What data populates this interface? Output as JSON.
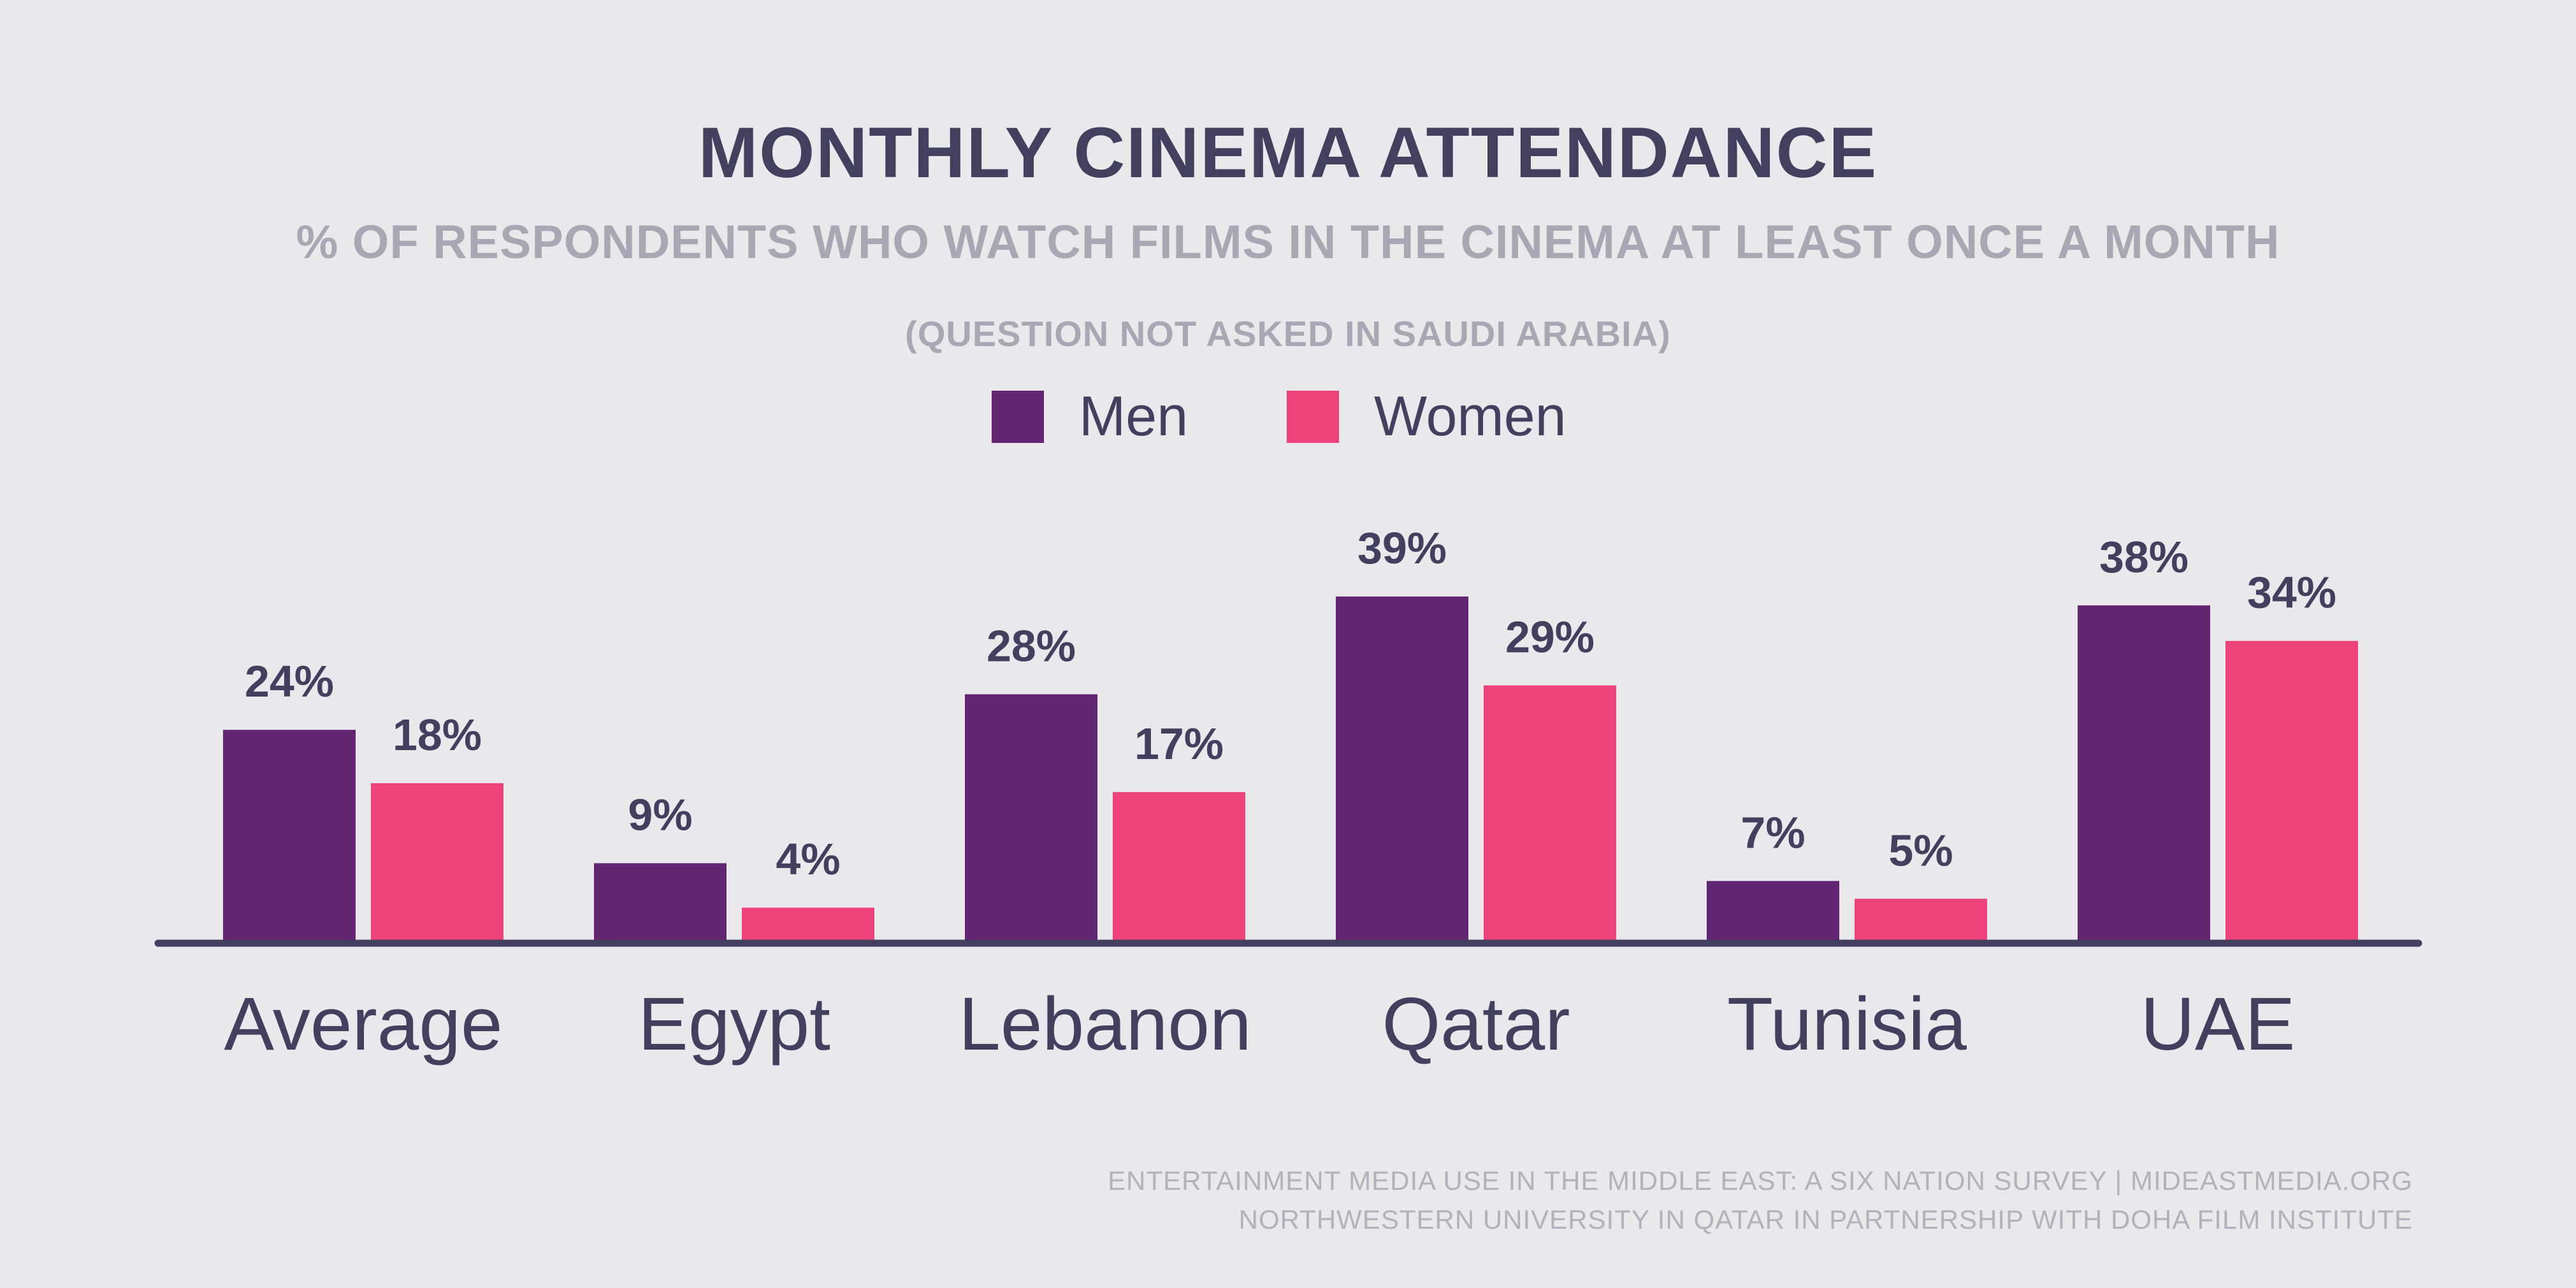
{
  "chart_data": {
    "type": "bar",
    "title": "MONTHLY CINEMA ATTENDANCE",
    "subtitle": "% OF RESPONDENTS WHO WATCH FILMS IN THE CINEMA AT LEAST ONCE A MONTH",
    "note": "(QUESTION NOT ASKED IN SAUDI ARABIA)",
    "categories": [
      "Average",
      "Egypt",
      "Lebanon",
      "Qatar",
      "Tunisia",
      "UAE"
    ],
    "series": [
      {
        "name": "Men",
        "color": "#632472",
        "values": [
          24,
          9,
          28,
          39,
          7,
          38
        ],
        "labels": [
          "24%",
          "9%",
          "28%",
          "39%",
          "7%",
          "38%"
        ]
      },
      {
        "name": "Women",
        "color": "#ee427a",
        "values": [
          18,
          4,
          17,
          29,
          5,
          34
        ],
        "labels": [
          "18%",
          "4%",
          "17%",
          "29%",
          "5%",
          "34%"
        ]
      }
    ],
    "ylim": [
      0,
      40
    ],
    "grid": false,
    "legend_position": "top-center",
    "source_lines": [
      "ENTERTAINMENT MEDIA USE IN THE MIDDLE EAST: A SIX NATION SURVEY | MIDEASTMEDIA.ORG",
      "NORTHWESTERN UNIVERSITY IN QATAR IN PARTNERSHIP WITH DOHA FILM INSTITUTE"
    ],
    "colors": {
      "background": "#e9e8ea",
      "title": "#423f5f",
      "subtitle": "#a9a7b4",
      "axis": "#423f5f",
      "source": "#b3b1bb"
    }
  }
}
